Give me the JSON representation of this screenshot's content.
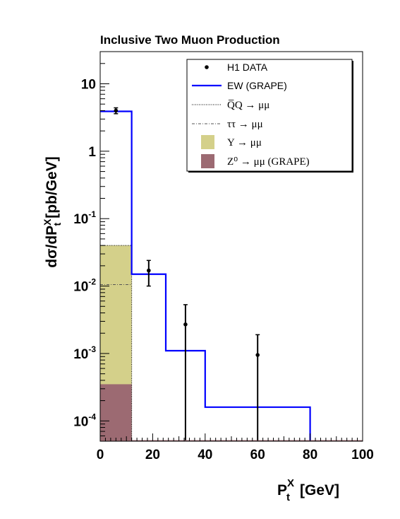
{
  "chart_data": {
    "type": "histogram",
    "title": "Inclusive Two  Muon Production",
    "xlabel": {
      "main": "P",
      "sup": "X",
      "sub": "t",
      "unit": "[GeV]"
    },
    "ylabel": {
      "prefix": "dσ/dP",
      "sup": "X",
      "sub": "t",
      "unit": "[pb/GeV]"
    },
    "xlim": [
      0,
      100
    ],
    "ylim": [
      5e-05,
      30
    ],
    "yscale": "log",
    "x_ticks": [
      0,
      20,
      40,
      60,
      80,
      100
    ],
    "x_tick_labels": [
      "0",
      "20",
      "40",
      "60",
      "80",
      "100"
    ],
    "y_ticks": [
      {
        "base": "10",
        "exp": "-4",
        "value": 0.0001
      },
      {
        "base": "10",
        "exp": "-3",
        "value": 0.001
      },
      {
        "base": "10",
        "exp": "-2",
        "value": 0.01
      },
      {
        "base": "10",
        "exp": "-1",
        "value": 0.1
      },
      {
        "base": "1",
        "exp": "",
        "value": 1
      },
      {
        "base": "10",
        "exp": "",
        "value": 10
      }
    ],
    "bin_edges": [
      0,
      12,
      25,
      40,
      80
    ],
    "series": [
      {
        "name": "H1 DATA",
        "kind": "points",
        "x": [
          6,
          18.5,
          32.5,
          60
        ],
        "y": [
          4.0,
          0.017,
          0.0027,
          0.00095
        ],
        "y_low": [
          3.6,
          0.01,
          5e-05,
          5e-05
        ],
        "y_high": [
          4.4,
          0.024,
          0.0053,
          0.0019
        ]
      },
      {
        "name": "EW (GRAPE)",
        "kind": "step",
        "color": "#0000ff",
        "values": [
          3.9,
          0.015,
          0.0011,
          0.00016
        ]
      },
      {
        "name": "Q̅Q → μμ",
        "kind": "dotted-line",
        "bins": [
          [
            0,
            12
          ]
        ],
        "values": [
          0.04
        ]
      },
      {
        "name": "ττ → μμ",
        "kind": "dashdot-line",
        "bins": [
          [
            0,
            12
          ]
        ],
        "values": [
          0.0105
        ]
      },
      {
        "name": "Υ → μμ",
        "kind": "filled",
        "color": "#d4d08a",
        "bins": [
          [
            0,
            12
          ]
        ],
        "values": [
          0.04
        ]
      },
      {
        "name": "Z⁰ → μμ (GRAPE)",
        "kind": "filled",
        "color": "#9c6a72",
        "bins": [
          [
            0,
            12
          ]
        ],
        "values": [
          0.00035
        ]
      }
    ],
    "legend": {
      "placement": "top-right",
      "entries": [
        {
          "label": "H1 DATA",
          "marker": "point"
        },
        {
          "label": "EW (GRAPE)",
          "marker": "line",
          "color": "#0000ff"
        },
        {
          "label": "Q̅Q  → μμ",
          "marker": "dotted"
        },
        {
          "label": "ττ → μμ",
          "marker": "dashdot"
        },
        {
          "label": "Υ → μμ",
          "marker": "box",
          "color": "#d4d08a"
        },
        {
          "label": "Z⁰ → μμ (GRAPE)",
          "marker": "box",
          "color": "#9c6a72"
        }
      ]
    }
  }
}
